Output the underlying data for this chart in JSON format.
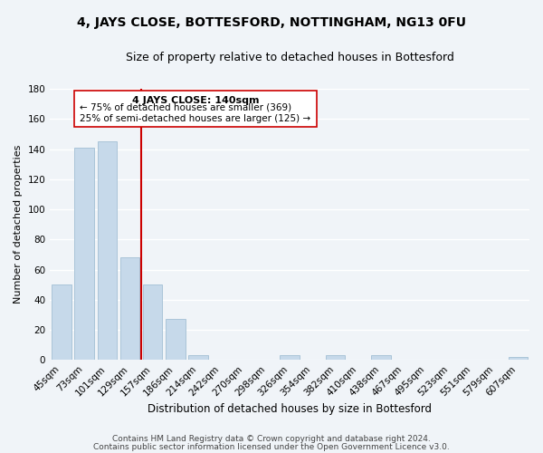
{
  "title": "4, JAYS CLOSE, BOTTESFORD, NOTTINGHAM, NG13 0FU",
  "subtitle": "Size of property relative to detached houses in Bottesford",
  "xlabel": "Distribution of detached houses by size in Bottesford",
  "ylabel": "Number of detached properties",
  "footer_line1": "Contains HM Land Registry data © Crown copyright and database right 2024.",
  "footer_line2": "Contains public sector information licensed under the Open Government Licence v3.0.",
  "bar_labels": [
    "45sqm",
    "73sqm",
    "101sqm",
    "129sqm",
    "157sqm",
    "186sqm",
    "214sqm",
    "242sqm",
    "270sqm",
    "298sqm",
    "326sqm",
    "354sqm",
    "382sqm",
    "410sqm",
    "438sqm",
    "467sqm",
    "495sqm",
    "523sqm",
    "551sqm",
    "579sqm",
    "607sqm"
  ],
  "bar_values": [
    50,
    141,
    145,
    68,
    50,
    27,
    3,
    0,
    0,
    0,
    3,
    0,
    3,
    0,
    3,
    0,
    0,
    0,
    0,
    0,
    2
  ],
  "bar_color": "#c6d9ea",
  "bar_edge_color": "#aac4d8",
  "vline_x": 3.5,
  "vline_color": "#cc0000",
  "annotation_title": "4 JAYS CLOSE: 140sqm",
  "annotation_line1": "← 75% of detached houses are smaller (369)",
  "annotation_line2": "25% of semi-detached houses are larger (125) →",
  "annotation_box_edge": "#cc0000",
  "ylim": [
    0,
    180
  ],
  "yticks": [
    0,
    20,
    40,
    60,
    80,
    100,
    120,
    140,
    160,
    180
  ],
  "background_color": "#f0f4f8",
  "grid_color": "#ffffff",
  "title_fontsize": 10,
  "subtitle_fontsize": 9,
  "ylabel_fontsize": 8,
  "xlabel_fontsize": 8.5,
  "tick_fontsize": 7.5,
  "footer_fontsize": 6.5
}
